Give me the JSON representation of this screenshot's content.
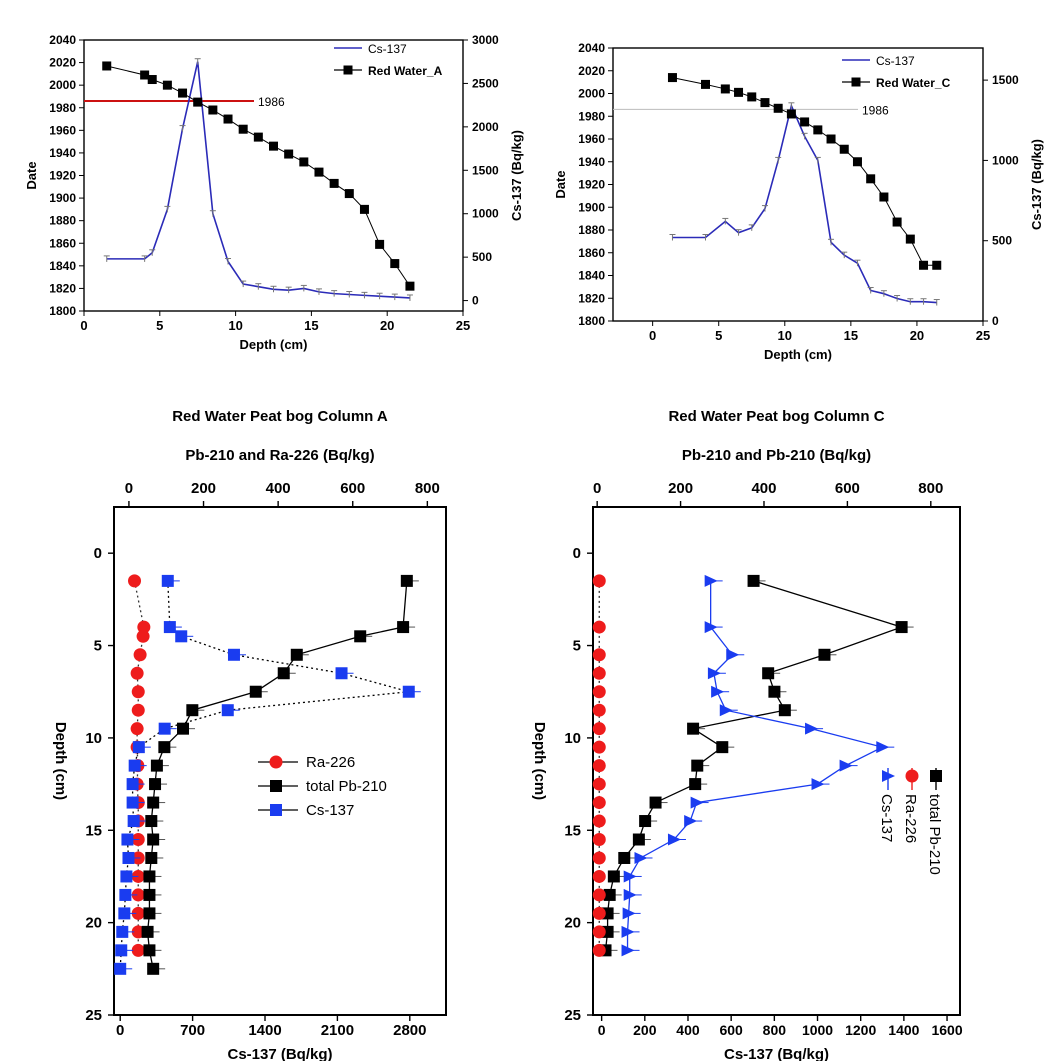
{
  "chart_data": [
    {
      "type": "line",
      "id": "A_top",
      "xlabel": "Depth (cm)",
      "ylabel": "Date",
      "y2label": "Cs-137 (Bq/kg)",
      "xlim": [
        0,
        25
      ],
      "ylim": [
        1800,
        2040
      ],
      "y2lim": [
        -120,
        3000
      ],
      "xticks": [
        0,
        5,
        10,
        15,
        20,
        25
      ],
      "yticks": [
        1800,
        1820,
        1840,
        1860,
        1880,
        1900,
        1920,
        1940,
        1960,
        1980,
        2000,
        2020,
        2040
      ],
      "y2ticks": [
        0,
        500,
        1000,
        1500,
        2000,
        2500,
        3000
      ],
      "legend": [
        "Cs-137",
        "Red Water_A"
      ],
      "legend_position": "top-right",
      "annotation": "1986",
      "series": [
        {
          "name": "Red Water_A",
          "axis": "left",
          "color": "#000000",
          "marker": "square",
          "x": [
            1.5,
            4,
            4.5,
            5.5,
            6.5,
            7.5,
            8.5,
            9.5,
            10.5,
            11.5,
            12.5,
            13.5,
            14.5,
            15.5,
            16.5,
            17.5,
            18.5,
            19.5,
            20.5,
            21.5
          ],
          "y": [
            2017,
            2009,
            2005,
            2000,
            1993,
            1985,
            1978,
            1970,
            1961,
            1954,
            1946,
            1939,
            1932,
            1923,
            1913,
            1904,
            1890,
            1859,
            1842,
            1822
          ]
        },
        {
          "name": "Cs-137",
          "axis": "right",
          "color": "#2b2bb8",
          "marker": "none",
          "x": [
            1.5,
            4,
            4.5,
            5.5,
            6.5,
            7.5,
            8.5,
            9.5,
            10.5,
            11.5,
            12.5,
            13.5,
            14.5,
            15.5,
            16.5,
            17.5,
            18.5,
            19.5,
            20.5,
            21.5
          ],
          "y": [
            480,
            480,
            550,
            1050,
            1980,
            2750,
            1000,
            450,
            190,
            160,
            130,
            120,
            140,
            100,
            80,
            70,
            60,
            50,
            40,
            30
          ]
        }
      ]
    },
    {
      "type": "line",
      "id": "C_top",
      "xlabel": "Depth (cm)",
      "ylabel": "Date",
      "y2label": "Cs-137 (Bq/kg)",
      "xlim": [
        -3,
        25
      ],
      "ylim": [
        1800,
        2040
      ],
      "y2lim": [
        0,
        1700
      ],
      "xticks": [
        0,
        5,
        10,
        15,
        20,
        25
      ],
      "yticks": [
        1800,
        1820,
        1840,
        1860,
        1880,
        1900,
        1920,
        1940,
        1960,
        1980,
        2000,
        2020,
        2040
      ],
      "y2ticks": [
        0,
        500,
        1000,
        1500
      ],
      "legend": [
        "Cs-137",
        "Red Water_C"
      ],
      "legend_position": "top-right",
      "annotation": "1986",
      "series": [
        {
          "name": "Red Water_C",
          "axis": "left",
          "color": "#000000",
          "marker": "square",
          "x": [
            1.5,
            4,
            5.5,
            6.5,
            7.5,
            8.5,
            9.5,
            10.5,
            11.5,
            12.5,
            13.5,
            14.5,
            15.5,
            16.5,
            17.5,
            18.5,
            19.5,
            20.5,
            21.5
          ],
          "y": [
            2014,
            2008,
            2004,
            2001,
            1997,
            1992,
            1987,
            1982,
            1975,
            1968,
            1960,
            1951,
            1940,
            1925,
            1909,
            1887,
            1872,
            1849,
            1849
          ]
        },
        {
          "name": "Cs-137",
          "axis": "right",
          "color": "#2b2bb8",
          "marker": "none",
          "x": [
            1.5,
            4,
            5.5,
            6.5,
            7.5,
            8.5,
            9.5,
            10.5,
            11.5,
            12.5,
            13.5,
            14.5,
            15.5,
            16.5,
            17.5,
            18.5,
            19.5,
            20.5,
            21.5
          ],
          "y": [
            520,
            520,
            620,
            550,
            580,
            700,
            1000,
            1340,
            1150,
            1000,
            490,
            410,
            360,
            190,
            170,
            140,
            120,
            120,
            115
          ]
        }
      ]
    },
    {
      "type": "line",
      "id": "A_bottom",
      "title": "Red Water Peat bog Column A",
      "xlabel_top": "Pb-210 and Ra-226 (Bq/kg)",
      "xlabel_bottom": "Cs-137 (Bq/kg)",
      "ylabel": "Depth (cm)",
      "xlim_top": [
        -40,
        850
      ],
      "xlim_bottom": [
        -60,
        3150
      ],
      "ylim": [
        25,
        -2.5
      ],
      "xticks_top": [
        0,
        200,
        400,
        600,
        800
      ],
      "xticks_bottom": [
        0,
        700,
        1400,
        2100,
        2800
      ],
      "yticks": [
        0,
        5,
        10,
        15,
        20,
        25
      ],
      "legend": [
        "Ra-226",
        "total Pb-210",
        "Cs-137"
      ],
      "legend_position": "center-right",
      "series": [
        {
          "name": "Ra-226",
          "axis": "top",
          "color": "#ee1c1c",
          "marker": "circle",
          "y": [
            1.5,
            4,
            4.5,
            5.5,
            6.5,
            7.5,
            8.5,
            9.5,
            10.5,
            11.5,
            12.5,
            13.5,
            14.5,
            15.5,
            16.5,
            17.5,
            18.5,
            19.5,
            20.5,
            21.5
          ],
          "x": [
            15,
            40,
            38,
            30,
            22,
            25,
            25,
            22,
            22,
            24,
            22,
            25,
            25,
            25,
            25,
            25,
            25,
            25,
            25,
            25
          ]
        },
        {
          "name": "total Pb-210",
          "axis": "top",
          "color": "#000000",
          "marker": "square",
          "y": [
            1.5,
            4,
            4.5,
            5.5,
            6.5,
            7.5,
            8.5,
            9.5,
            10.5,
            11.5,
            12.5,
            13.5,
            14.5,
            15.5,
            16.5,
            17.5,
            18.5,
            19.5,
            20.5,
            21.5,
            22.5
          ],
          "x": [
            745,
            735,
            620,
            450,
            415,
            340,
            170,
            145,
            95,
            75,
            70,
            65,
            60,
            65,
            60,
            55,
            55,
            55,
            50,
            55,
            65
          ]
        },
        {
          "name": "Cs-137",
          "axis": "bottom",
          "color": "#1a3cf0",
          "marker": "square",
          "y": [
            1.5,
            4,
            4.5,
            5.5,
            6.5,
            7.5,
            8.5,
            9.5,
            10.5,
            11.5,
            12.5,
            13.5,
            14.5,
            15.5,
            16.5,
            17.5,
            18.5,
            19.5,
            20.5,
            21.5,
            22.5
          ],
          "x": [
            460,
            480,
            590,
            1100,
            2140,
            2790,
            1040,
            430,
            180,
            140,
            120,
            120,
            130,
            70,
            80,
            60,
            50,
            40,
            20,
            10,
            0
          ]
        }
      ]
    },
    {
      "type": "line",
      "id": "C_bottom",
      "title": "Red Water Peat bog Column C",
      "xlabel_top": "Pb-210 and Pb-210 (Bq/kg)",
      "xlabel_bottom": "Cs-137 (Bq/kg)",
      "ylabel": "Depth (cm)",
      "xlim_top": [
        -10,
        870
      ],
      "xlim_bottom": [
        -40,
        1660
      ],
      "ylim": [
        25,
        -2.5
      ],
      "xticks_top": [
        0,
        200,
        400,
        600,
        800
      ],
      "xticks_bottom": [
        0,
        200,
        400,
        600,
        800,
        1000,
        1200,
        1400,
        1600
      ],
      "yticks": [
        0,
        5,
        10,
        15,
        20,
        25
      ],
      "legend": [
        "total Pb-210",
        "Ra-226",
        "Cs-137"
      ],
      "legend_position": "bottom-right",
      "series": [
        {
          "name": "total Pb-210",
          "axis": "top",
          "color": "#000000",
          "marker": "square",
          "y": [
            1.5,
            4,
            5.5,
            6.5,
            7.5,
            8.5,
            9.5,
            10.5,
            11.5,
            12.5,
            13.5,
            14.5,
            15.5,
            16.5,
            17.5,
            18.5,
            19.5,
            20.5,
            21.5
          ],
          "x": [
            375,
            730,
            545,
            410,
            425,
            450,
            230,
            300,
            240,
            235,
            140,
            115,
            100,
            65,
            40,
            30,
            25,
            25,
            20
          ]
        },
        {
          "name": "Ra-226",
          "axis": "top",
          "color": "#ee1c1c",
          "marker": "circle",
          "y": [
            1.5,
            4,
            5.5,
            6.5,
            7.5,
            8.5,
            9.5,
            10.5,
            11.5,
            12.5,
            13.5,
            14.5,
            15.5,
            16.5,
            17.5,
            18.5,
            19.5,
            20.5,
            21.5
          ],
          "x": [
            5,
            5,
            5,
            5,
            5,
            5,
            5,
            5,
            5,
            5,
            5,
            5,
            5,
            5,
            5,
            5,
            5,
            5,
            5
          ]
        },
        {
          "name": "Cs-137",
          "axis": "bottom",
          "color": "#1a3cf0",
          "marker": "triangle",
          "y": [
            1.5,
            4,
            5.5,
            6.5,
            7.5,
            8.5,
            9.5,
            10.5,
            11.5,
            12.5,
            13.5,
            14.5,
            15.5,
            16.5,
            17.5,
            18.5,
            19.5,
            20.5,
            21.5
          ],
          "x": [
            505,
            505,
            605,
            520,
            535,
            575,
            970,
            1300,
            1130,
            1000,
            440,
            410,
            335,
            180,
            130,
            130,
            125,
            120,
            120
          ]
        }
      ]
    }
  ]
}
